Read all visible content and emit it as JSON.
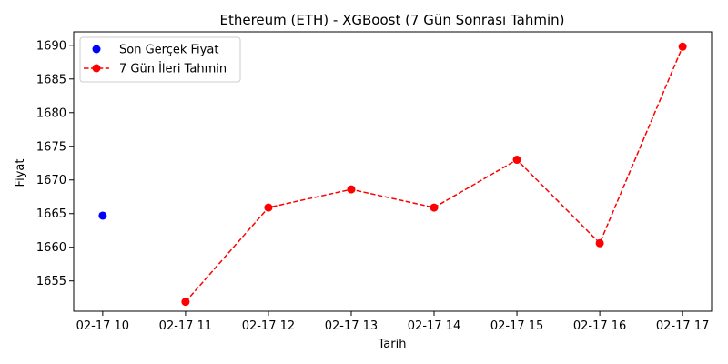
{
  "chart_data": {
    "type": "line",
    "title": "Ethereum (ETH) - XGBoost (7 Gün Sonrası Tahmin)",
    "xlabel": "Tarih",
    "ylabel": "Fiyat",
    "categories": [
      "02-17 10",
      "02-17 11",
      "02-17 12",
      "02-17 13",
      "02-17 14",
      "02-17 15",
      "02-17 16",
      "02-17 17"
    ],
    "ylim": [
      1650.5,
      1692
    ],
    "yticks": [
      1655,
      1660,
      1665,
      1670,
      1675,
      1680,
      1685,
      1690
    ],
    "grid": false,
    "legend_position": "top-left",
    "series": [
      {
        "name": "Son Gerçek Fiyat",
        "style": "marker",
        "color": "#0000ff",
        "points": [
          {
            "x": "02-17 10",
            "y": 1664.7
          }
        ]
      },
      {
        "name": "7 Gün İleri Tahmin",
        "style": "dashed-line-marker",
        "color": "#ff0000",
        "points": [
          {
            "x": "02-17 11",
            "y": 1651.9
          },
          {
            "x": "02-17 12",
            "y": 1665.9
          },
          {
            "x": "02-17 13",
            "y": 1668.6
          },
          {
            "x": "02-17 14",
            "y": 1665.9
          },
          {
            "x": "02-17 15",
            "y": 1673.0
          },
          {
            "x": "02-17 16",
            "y": 1660.6
          },
          {
            "x": "02-17 17",
            "y": 1689.8
          }
        ]
      }
    ]
  }
}
